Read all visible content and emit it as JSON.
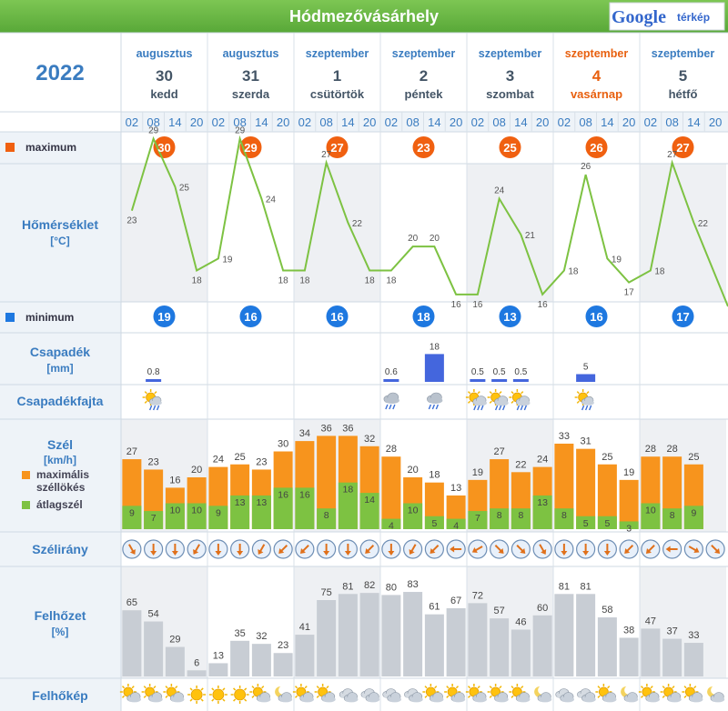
{
  "header": {
    "city": "Hódmezővásárhely",
    "brand_google": "Google",
    "brand_terkep": "térkép"
  },
  "year": "2022",
  "days": [
    {
      "month": "augusztus",
      "day": "30",
      "weekday": "kedd",
      "sunday": false
    },
    {
      "month": "augusztus",
      "day": "31",
      "weekday": "szerda",
      "sunday": false
    },
    {
      "month": "szeptember",
      "day": "1",
      "weekday": "csütörtök",
      "sunday": false
    },
    {
      "month": "szeptember",
      "day": "2",
      "weekday": "péntek",
      "sunday": false
    },
    {
      "month": "szeptember",
      "day": "3",
      "weekday": "szombat",
      "sunday": false
    },
    {
      "month": "szeptember",
      "day": "4",
      "weekday": "vasárnap",
      "sunday": true
    },
    {
      "month": "szeptember",
      "day": "5",
      "weekday": "hétfő",
      "sunday": false
    }
  ],
  "hours": [
    "02",
    "08",
    "14",
    "20"
  ],
  "labels": {
    "maximum": "maximum",
    "temperature": "Hőmérséklet",
    "temperature_unit": "[°C]",
    "minimum": "minimum",
    "precip": "Csapadék",
    "precip_unit": "[mm]",
    "precip_type": "Csapadékfajta",
    "wind": "Szél",
    "wind_unit": "[km/h]",
    "wind_gust": "maximális széllökés",
    "wind_avg": "átlagszél",
    "wind_dir": "Szélirány",
    "cloud": "Felhőzet",
    "cloud_unit": "[%]",
    "cloud_image": "Felhőkép"
  },
  "colors": {
    "max_badge": "#f06010",
    "min_badge": "#1e78e0",
    "gust": "#f7941d",
    "avg": "#7dc242",
    "temp_line": "#7dc242",
    "precip_bar": "#4466dd",
    "cloud_bar": "#c8cdd4",
    "label_blue": "#3a7cc0",
    "header_green": "#6dbb46",
    "sunday": "#e8600f"
  },
  "chart_data": {
    "type": "meteogram",
    "time_slots": [
      "08-30 02",
      "08-30 08",
      "08-30 14",
      "08-30 20",
      "08-31 02",
      "08-31 08",
      "08-31 14",
      "08-31 20",
      "09-01 02",
      "09-01 08",
      "09-01 14",
      "09-01 20",
      "09-02 02",
      "09-02 08",
      "09-02 14",
      "09-02 20",
      "09-03 02",
      "09-03 08",
      "09-03 14",
      "09-03 20",
      "09-04 02",
      "09-04 08",
      "09-04 14",
      "09-04 20",
      "09-05 02",
      "09-05 08",
      "09-05 14",
      "09-05 20"
    ],
    "daily_max": [
      30,
      29,
      27,
      23,
      25,
      26,
      27
    ],
    "daily_min": [
      19,
      16,
      16,
      18,
      13,
      16,
      17
    ],
    "temperature": [
      23,
      29,
      25,
      18,
      19,
      29,
      24,
      18,
      18,
      27,
      22,
      18,
      18,
      20,
      20,
      16,
      16,
      24,
      21,
      16,
      18,
      26,
      19,
      17,
      18,
      27,
      22,
      null
    ],
    "temperature_final_slot_value": 15,
    "precipitation_mm": [
      null,
      0.8,
      null,
      null,
      null,
      null,
      null,
      null,
      null,
      null,
      null,
      null,
      0.6,
      null,
      18,
      null,
      0.5,
      0.5,
      0.5,
      null,
      null,
      5,
      null,
      null,
      null,
      null,
      null,
      null
    ],
    "precipitation_labels": [
      "",
      "0.8",
      "",
      "",
      "",
      "",
      "",
      "",
      "",
      "",
      "",
      "",
      "0.6",
      "",
      "18",
      "",
      "0.5",
      "0.5",
      "0.5",
      "",
      "",
      "5",
      "",
      "",
      "",
      "",
      "",
      ""
    ],
    "precip_type_icons": [
      "",
      "sun-rain-icon",
      "",
      "",
      "",
      "",
      "",
      "",
      "",
      "",
      "",
      "",
      "cloud-rain-icon",
      "",
      "cloud-rain-icon",
      "",
      "sun-cloud-rain-icon",
      "sun-cloud-rain-icon",
      "sun-cloud-rain-icon",
      "",
      "",
      "sun-rain-icon",
      "",
      "",
      "",
      "",
      "",
      ""
    ],
    "wind_gust_kmh": [
      27,
      23,
      16,
      20,
      24,
      25,
      23,
      30,
      34,
      36,
      36,
      32,
      28,
      20,
      18,
      13,
      19,
      27,
      22,
      24,
      33,
      31,
      25,
      19,
      28,
      28,
      25
    ],
    "wind_avg_kmh": [
      9,
      7,
      10,
      10,
      9,
      13,
      13,
      16,
      16,
      8,
      18,
      14,
      4,
      10,
      5,
      4,
      7,
      8,
      8,
      13,
      8,
      5,
      5,
      3,
      10,
      8,
      9
    ],
    "wind_direction_deg": [
      330,
      0,
      0,
      30,
      0,
      0,
      30,
      45,
      45,
      0,
      0,
      45,
      0,
      30,
      45,
      90,
      60,
      315,
      315,
      330,
      0,
      0,
      0,
      45,
      45,
      90,
      300,
      315
    ],
    "cloud_cover_pct": [
      65,
      54,
      29,
      6,
      13,
      35,
      32,
      23,
      41,
      75,
      81,
      82,
      80,
      83,
      61,
      67,
      72,
      57,
      46,
      60,
      81,
      81,
      58,
      38,
      47,
      37,
      33
    ],
    "cloud_image_icons": [
      "sun-cloud-icon",
      "sun-cloud-icon",
      "sun-cloud-icon",
      "sun-icon",
      "sun-icon",
      "sun-icon",
      "sun-cloud-icon",
      "moon-cloud-icon",
      "sun-cloud-icon",
      "sun-cloud-icon",
      "cloud-icon",
      "cloud-icon",
      "cloud-icon",
      "cloud-icon",
      "sun-cloud-icon",
      "sun-cloud-icon",
      "sun-cloud-icon",
      "sun-cloud-icon",
      "sun-cloud-icon",
      "moon-cloud-icon",
      "cloud-icon",
      "cloud-icon",
      "sun-cloud-icon",
      "moon-cloud-icon",
      "sun-cloud-icon",
      "sun-cloud-icon",
      "sun-cloud-icon",
      "moon-cloud-icon"
    ]
  }
}
